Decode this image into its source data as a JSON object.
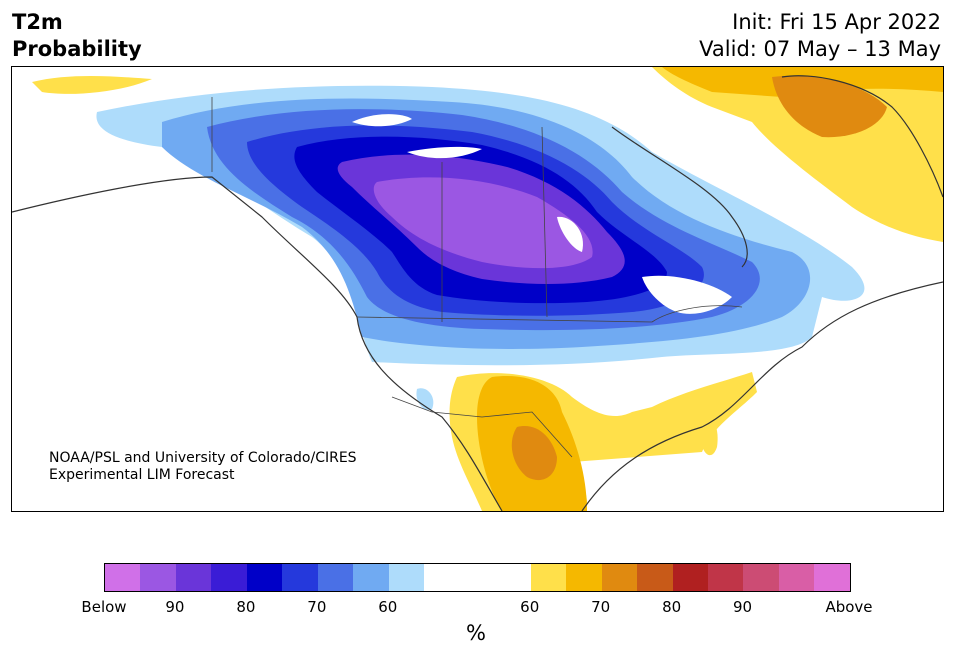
{
  "header": {
    "title_line1": "T2m",
    "title_line2": "Probability",
    "init": "Init: Fri 15 Apr 2022",
    "valid": "Valid: 07 May – 13 May"
  },
  "credit": {
    "line1": "NOAA/PSL and University of Colorado/CIRES",
    "line2": "Experimental LIM Forecast"
  },
  "colorbar": {
    "colors_below": [
      "#d070e8",
      "#9b57e3",
      "#6a35d9",
      "#3a1cd6",
      "#0000c8",
      "#2539dc",
      "#4a70e6",
      "#70aaf2",
      "#aedcfb"
    ],
    "color_neutral": "#ffffff",
    "colors_above": [
      "#ffe04a",
      "#f5b800",
      "#e08a10",
      "#c85a18",
      "#b02020",
      "#c03548",
      "#cc4c74",
      "#d95ea6",
      "#e070d8"
    ],
    "tick_labels": [
      "Below",
      "90",
      "80",
      "70",
      "60",
      "60",
      "70",
      "80",
      "90",
      "Above"
    ],
    "unit": "%"
  },
  "map": {
    "region": "North America",
    "land_color": "#ffffff",
    "coast_color": "#333333",
    "legend_semantics": "blue = below-normal temperature probability, orange = above-normal"
  }
}
